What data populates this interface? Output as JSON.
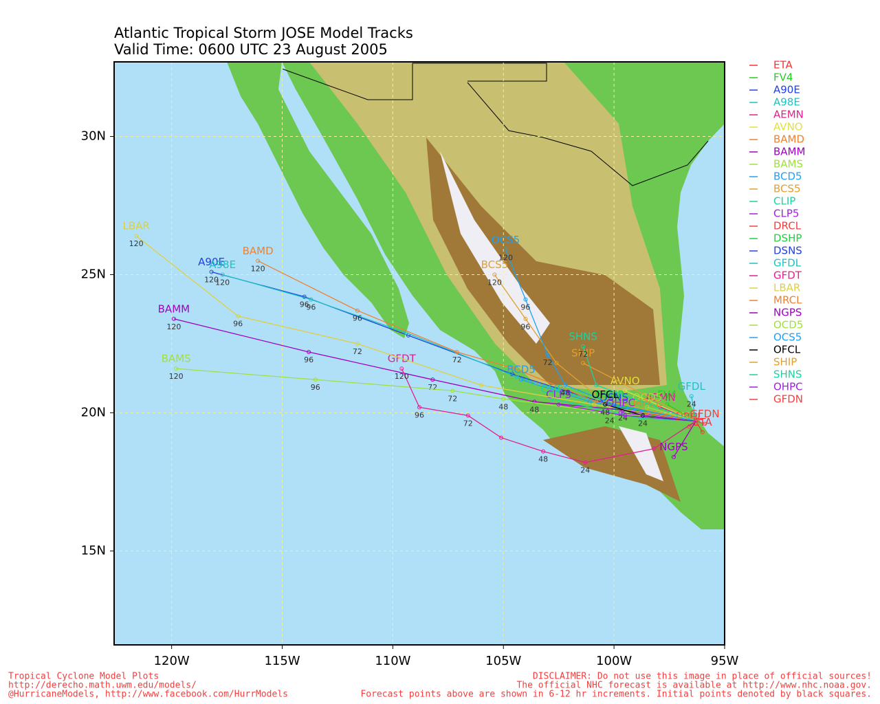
{
  "chart_data": {
    "type": "tracks",
    "title": "Atlantic Tropical Storm JOSE Model Tracks",
    "subtitle": "Valid Time: 0600 UTC 23 August 2005",
    "xlim": [
      -122.6,
      -95
    ],
    "ylim": [
      11.6,
      32.7
    ],
    "xticks": [
      {
        "value": -120,
        "label": "120W"
      },
      {
        "value": -115,
        "label": "115W"
      },
      {
        "value": -110,
        "label": "110W"
      },
      {
        "value": -105,
        "label": "105W"
      },
      {
        "value": -100,
        "label": "100W"
      },
      {
        "value": -95,
        "label": "95W"
      }
    ],
    "yticks": [
      {
        "value": 15,
        "label": "15N"
      },
      {
        "value": 20,
        "label": "20N"
      },
      {
        "value": 25,
        "label": "25N"
      },
      {
        "value": 30,
        "label": "30N"
      }
    ],
    "grid": true,
    "series": [
      {
        "name": "ETA",
        "color": "#ff3030",
        "lon": [
          -96.3,
          -96.0
        ],
        "lat": [
          19.7,
          19.3
        ]
      },
      {
        "name": "FV4",
        "color": "#20d020",
        "lon": [
          -96.3,
          -97.6
        ],
        "lat": [
          19.7,
          20.3
        ]
      },
      {
        "name": "A90E",
        "color": "#2040e0",
        "lon": [
          -96.3,
          -100.6,
          -104.6,
          -109.3,
          -114.0,
          -118.2
        ],
        "lat": [
          19.7,
          20.4,
          21.4,
          22.8,
          24.2,
          25.1
        ],
        "hours": [
          null,
          null,
          null,
          null,
          96,
          120
        ]
      },
      {
        "name": "A98E",
        "color": "#20c0c0",
        "lon": [
          -96.3,
          -100.4,
          -104.4,
          -109.4,
          -113.7,
          -117.7
        ],
        "lat": [
          19.7,
          20.3,
          21.3,
          22.9,
          24.1,
          25.0
        ],
        "hours": [
          null,
          null,
          null,
          null,
          96,
          120
        ]
      },
      {
        "name": "AEMN",
        "color": "#e0208f",
        "lon": [
          -96.3,
          -97.9
        ],
        "lat": [
          19.7,
          20.2
        ]
      },
      {
        "name": "AVNO",
        "color": "#e0e040",
        "lon": [
          -96.3,
          -99.5
        ],
        "lat": [
          19.7,
          20.8
        ]
      },
      {
        "name": "BAMD",
        "color": "#f08030",
        "lon": [
          -96.3,
          -100.8,
          -104.5,
          -107.1,
          -111.6,
          -116.1
        ],
        "lat": [
          19.7,
          20.4,
          21.6,
          22.2,
          23.7,
          25.5
        ],
        "hours": [
          null,
          null,
          null,
          72,
          96,
          120
        ]
      },
      {
        "name": "BAMM",
        "color": "#a000c0",
        "lon": [
          -96.3,
          -99.6,
          -103.6,
          -108.2,
          -113.8,
          -119.9
        ],
        "lat": [
          19.7,
          20.1,
          20.4,
          21.2,
          22.2,
          23.4
        ],
        "hours": [
          null,
          24,
          48,
          72,
          96,
          120
        ]
      },
      {
        "name": "BAMS",
        "color": "#a0e040",
        "lon": [
          -96.3,
          -100.2,
          -105.0,
          -107.3,
          -113.5,
          -119.8
        ],
        "lat": [
          19.7,
          20.0,
          20.5,
          20.8,
          21.2,
          21.6
        ],
        "hours": [
          null,
          24,
          48,
          72,
          96,
          120
        ]
      },
      {
        "name": "BCD5",
        "color": "#20a0f0",
        "lon": [
          -96.3,
          -101.1,
          -104.2
        ],
        "lat": [
          19.7,
          20.4,
          21.2
        ]
      },
      {
        "name": "BCS5",
        "color": "#e0a030",
        "lon": [
          -96.3,
          -100.6,
          -102.6,
          -104.0,
          -105.4
        ],
        "lat": [
          19.7,
          20.5,
          21.8,
          23.4,
          25.0
        ],
        "hours": [
          null,
          null,
          null,
          96,
          120
        ]
      },
      {
        "name": "CLIP",
        "color": "#20d0a0",
        "lon": [
          -96.3,
          -98.8,
          -102.8
        ],
        "lat": [
          19.7,
          19.8,
          20.5
        ]
      },
      {
        "name": "CLP5",
        "color": "#a020e0",
        "lon": [
          -96.3,
          -99.5,
          -102.5
        ],
        "lat": [
          19.7,
          19.9,
          20.3
        ]
      },
      {
        "name": "DRCL",
        "color": "#f04040",
        "lon": [
          -96.3,
          -96.6
        ],
        "lat": [
          19.7,
          19.5
        ]
      },
      {
        "name": "DSHP",
        "color": "#20d040",
        "lon": [
          -96.3,
          -100.2
        ],
        "lat": [
          19.7,
          20.3
        ]
      },
      {
        "name": "DSNS",
        "color": "#2040e0",
        "lon": [
          -96.3,
          -100.0
        ],
        "lat": [
          19.7,
          20.2
        ]
      },
      {
        "name": "GFDL",
        "color": "#20c0c0",
        "lon": [
          -96.3,
          -96.5
        ],
        "lat": [
          19.7,
          20.6
        ],
        "hours": [
          null,
          24
        ]
      },
      {
        "name": "GFDT",
        "color": "#e0208f",
        "lon": [
          -96.3,
          -98.2,
          -101.3,
          -103.2,
          -105.1,
          -106.6,
          -108.8,
          -109.6
        ],
        "lat": [
          19.7,
          18.7,
          18.2,
          18.6,
          19.1,
          19.9,
          20.2,
          21.6
        ],
        "hours": [
          null,
          null,
          24,
          48,
          null,
          72,
          96,
          120
        ]
      },
      {
        "name": "LBAR",
        "color": "#e0d040",
        "lon": [
          -96.3,
          -100.9,
          -106.0,
          -111.6,
          -117.0,
          -121.6
        ],
        "lat": [
          19.7,
          20.3,
          21.0,
          22.5,
          23.5,
          26.4
        ],
        "hours": [
          null,
          null,
          null,
          72,
          96,
          120
        ]
      },
      {
        "name": "MRCL",
        "color": "#f08030",
        "lon": [
          -96.3,
          -98.5
        ],
        "lat": [
          19.7,
          20.0
        ]
      },
      {
        "name": "NGPS",
        "color": "#a000c0",
        "lon": [
          -96.3,
          -97.3
        ],
        "lat": [
          19.7,
          18.4
        ]
      },
      {
        "name": "OCD5",
        "color": "#a0e040",
        "lon": [
          -96.3,
          -98.5
        ],
        "lat": [
          19.7,
          20.2
        ]
      },
      {
        "name": "OCS5",
        "color": "#20a0f0",
        "lon": [
          -96.3,
          -100.0,
          -102.2,
          -103.0,
          -104.0,
          -104.9
        ],
        "lat": [
          19.7,
          20.3,
          21.0,
          22.1,
          24.1,
          25.9
        ],
        "hours": [
          null,
          null,
          48,
          72,
          96,
          120
        ]
      },
      {
        "name": "OFCL",
        "color": "#000000",
        "lon": [
          -96.3,
          -98.7,
          -100.4
        ],
        "lat": [
          19.7,
          19.9,
          20.3
        ],
        "hours": [
          null,
          24,
          48
        ]
      },
      {
        "name": "SHIP",
        "color": "#e0a030",
        "lon": [
          -96.3,
          -101.4
        ],
        "lat": [
          19.7,
          21.8
        ]
      },
      {
        "name": "SHNS",
        "color": "#20d0a0",
        "lon": [
          -96.3,
          -100.8,
          -101.4
        ],
        "lat": [
          19.7,
          21.0,
          22.4
        ],
        "hours": [
          null,
          null,
          72
        ]
      },
      {
        "name": "OHPC",
        "color": "#a020e0",
        "lon": [
          -96.3,
          -99.7
        ],
        "lat": [
          19.7,
          20.0
        ]
      },
      {
        "name": "GFDN",
        "color": "#f04040",
        "lon": [
          -96.3,
          -95.9
        ],
        "lat": [
          19.7,
          19.6
        ]
      }
    ],
    "footer_left": [
      "Tropical Cyclone Model Plots",
      "http://derecho.math.uwm.edu/models/",
      "@HurricaneModels, http://www.facebook.com/HurrModels"
    ],
    "footer_right": [
      "DISCLAIMER: Do not use this image in place of official sources!",
      "The official NHC forecast is available at http://www.nhc.noaa.gov.",
      "Forecast points above are shown in 6-12 hr increments. Initial points denoted by black squares."
    ]
  }
}
